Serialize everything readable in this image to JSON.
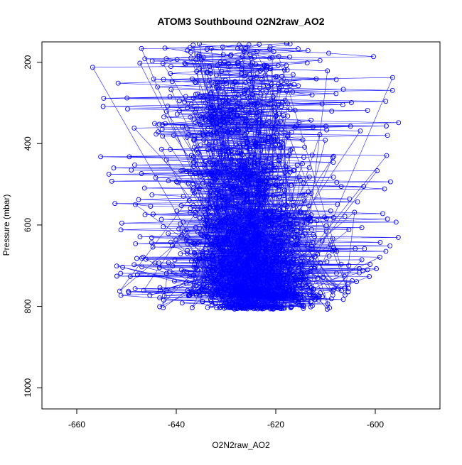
{
  "chart_data": {
    "type": "scatter",
    "title": "ATOM3 Southbound O2N2raw_AO2",
    "xlabel": "O2N2raw_AO2",
    "ylabel": "Pressure (mbar)",
    "xlim": [
      -667,
      -587
    ],
    "ylim": [
      1052,
      150
    ],
    "y_axis_reversed": true,
    "x_ticks": [
      -660,
      -640,
      -620,
      -600
    ],
    "x_tick_labels": [
      "-660",
      "-640",
      "-620",
      "-600"
    ],
    "y_ticks": [
      200,
      400,
      600,
      800,
      1000
    ],
    "y_tick_labels": [
      "200",
      "400",
      "600",
      "800",
      "1000"
    ],
    "grid": false,
    "legend": "none",
    "series_style": "points-and-lines",
    "marker": "open-circle",
    "color": "#0000ff",
    "point_count_approx": 2600,
    "density_profile": {
      "pressure_bands": [
        150,
        300,
        450,
        600,
        700,
        770,
        810
      ],
      "x_center": [
        -629,
        -628,
        -627,
        -626,
        -625,
        -624,
        -624
      ],
      "x_spread": [
        14,
        13,
        12,
        11,
        10,
        9,
        8
      ],
      "x_min": [
        -662,
        -658,
        -655,
        -652,
        -652,
        -652,
        -642
      ],
      "x_max": [
        -588,
        -594,
        -597,
        -594,
        -598,
        -604,
        -608
      ],
      "relative_density": [
        0.6,
        0.8,
        1.0,
        1.2,
        1.4,
        1.5,
        0.9
      ]
    }
  }
}
